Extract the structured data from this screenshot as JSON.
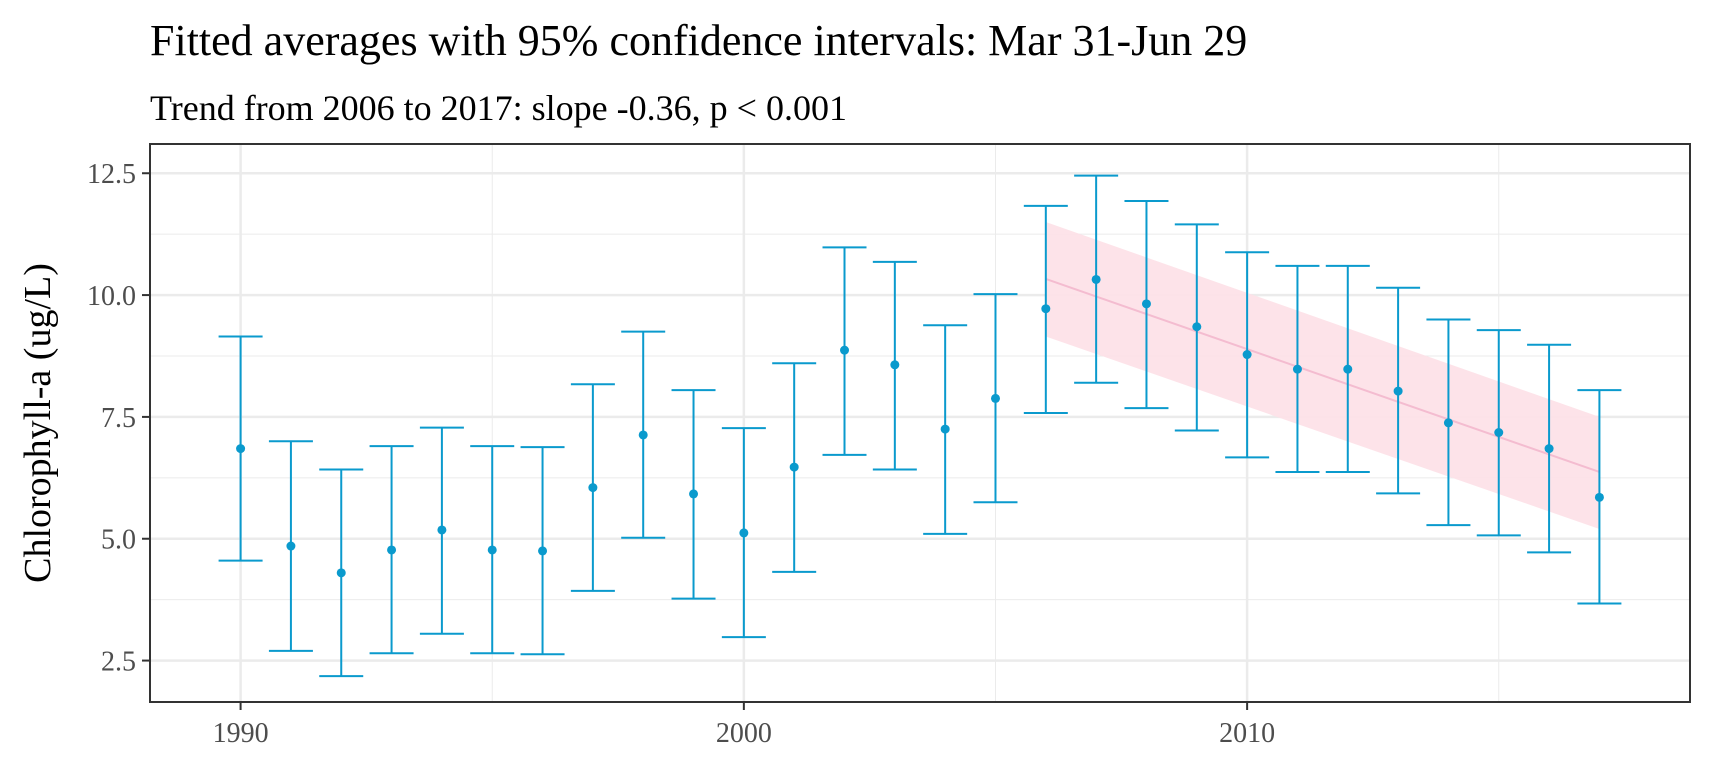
{
  "chart_data": {
    "type": "scatter",
    "title": "Fitted averages with 95% confidence intervals: Mar 31-Jun 29",
    "subtitle": "Trend from 2006 to 2017: slope -0.36, p < 0.001",
    "xlabel": "",
    "ylabel": "Chlorophyll-a (ug/L)",
    "xlim": [
      1988.2,
      2018.8
    ],
    "ylim": [
      1.65,
      13.1
    ],
    "x_ticks": [
      1990,
      2000,
      2010
    ],
    "y_ticks": [
      2.5,
      5.0,
      7.5,
      10.0,
      12.5
    ],
    "y_tick_labels": [
      "2.5",
      "5.0",
      "7.5",
      "10.0",
      "12.5"
    ],
    "grid": true,
    "colors": {
      "points": "#0a9acd",
      "trend_line": "#f4bcd0",
      "trend_band": "#fde1e8",
      "grid": "#ebebeb",
      "panel_border": "#333333"
    },
    "series": [
      {
        "x": [
          1990,
          1991,
          1992,
          1993,
          1994,
          1995,
          1996,
          1997,
          1998,
          1999,
          2000,
          2001,
          2002,
          2003,
          2004,
          2005,
          2006,
          2007,
          2008,
          2009,
          2010,
          2011,
          2012,
          2013,
          2014,
          2015,
          2016,
          2017
        ],
        "y": [
          6.85,
          4.85,
          4.3,
          4.77,
          5.18,
          4.77,
          4.75,
          6.05,
          7.13,
          5.92,
          5.12,
          6.47,
          8.87,
          8.57,
          7.25,
          7.88,
          9.72,
          10.32,
          9.82,
          9.35,
          8.78,
          8.48,
          8.48,
          8.03,
          7.38,
          7.18,
          6.85,
          5.85
        ],
        "lower": [
          4.55,
          2.7,
          2.18,
          2.65,
          3.05,
          2.65,
          2.63,
          3.93,
          5.02,
          3.77,
          2.98,
          4.32,
          6.72,
          6.42,
          5.1,
          5.75,
          7.58,
          8.2,
          7.68,
          7.22,
          6.67,
          6.37,
          6.37,
          5.93,
          5.28,
          5.07,
          4.72,
          3.67
        ],
        "upper": [
          9.15,
          7.0,
          6.42,
          6.9,
          7.28,
          6.9,
          6.88,
          8.17,
          9.25,
          8.05,
          7.27,
          8.6,
          10.98,
          10.68,
          9.38,
          10.02,
          11.83,
          12.45,
          11.93,
          11.45,
          10.88,
          10.6,
          10.6,
          10.15,
          9.5,
          9.28,
          8.98,
          8.05
        ]
      }
    ],
    "trend": {
      "x_start": 2006,
      "x_end": 2017,
      "y_start": 10.33,
      "y_end": 6.37,
      "band_lower": [
        9.15,
        5.2
      ],
      "band_upper": [
        11.5,
        7.5
      ]
    }
  }
}
